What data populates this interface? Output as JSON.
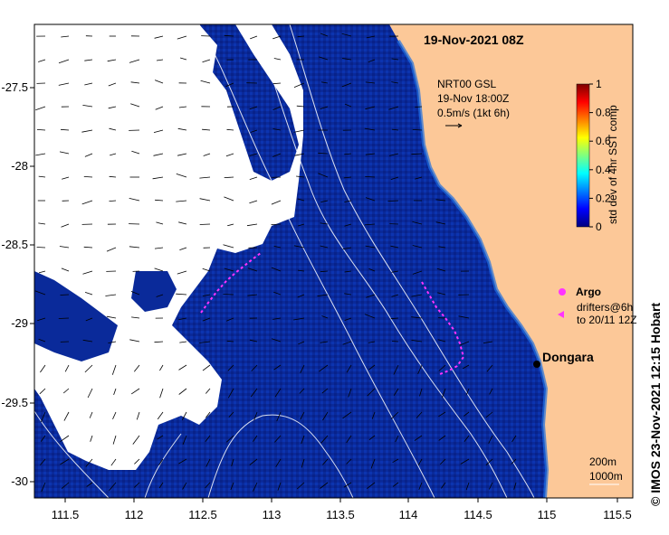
{
  "map": {
    "title": "19-Nov-2021 08Z",
    "current_source": {
      "line1": "NRT00 GSL",
      "line2": "19-Nov 18:00Z",
      "scale_label": "0.5m/s (1kt 6h)"
    },
    "x_ticks": [
      "111.5",
      "112",
      "112.5",
      "113",
      "113.5",
      "114",
      "114.5",
      "115",
      "115.5"
    ],
    "y_ticks": [
      "-27.5",
      "-28",
      "-28.5",
      "-29",
      "-29.5",
      "-30"
    ],
    "colorbar": {
      "label": "std dev of 4hr SST comp",
      "ticks": [
        "1",
        "0.8",
        "0.6",
        "0.4",
        "0.2",
        "0"
      ],
      "colors": [
        "#00007f",
        "#0000ff",
        "#007fff",
        "#00ffff",
        "#7fff7f",
        "#ffff00",
        "#ff7f00",
        "#ff0000",
        "#7f0000"
      ]
    },
    "legend": {
      "argo": "Argo",
      "drifters_line1": "drifters@6h",
      "drifters_line2": "to 20/11 12Z"
    },
    "place_label": "Dongara",
    "contour_labels": [
      "200m",
      "1000m"
    ],
    "credit": "© IMOS 23-Nov-2021 12:15 Hobart",
    "colors": {
      "land": "#fcc898",
      "ocean": "#0a2a9a",
      "cloud": "#ffffff",
      "drifter": "#ff33ff"
    }
  }
}
